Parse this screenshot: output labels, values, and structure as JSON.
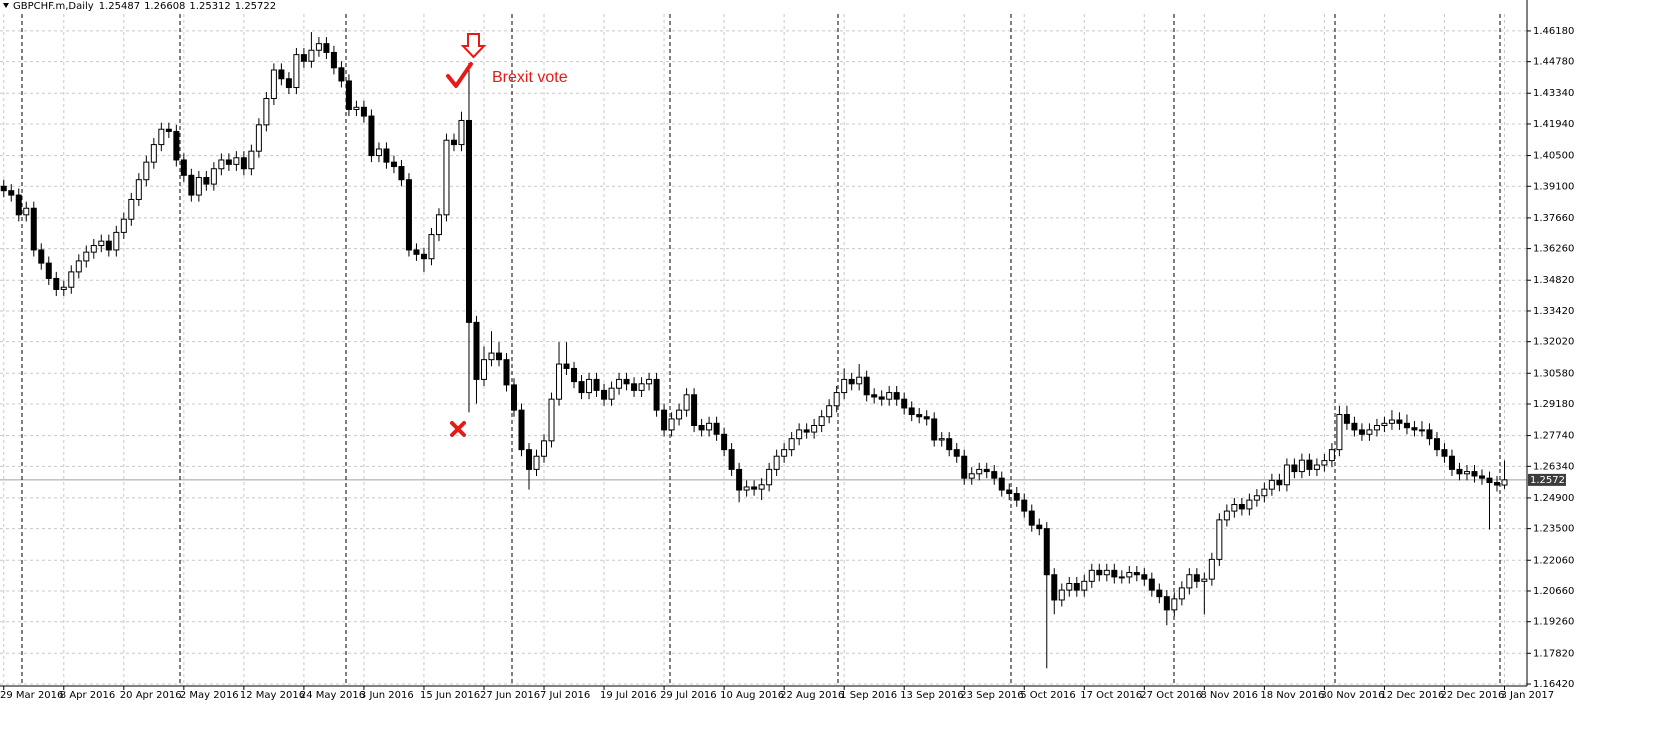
{
  "chart_data": {
    "type": "candlestick",
    "title": "GBPCHF.m,Daily",
    "annotation": "Brexit vote",
    "up_color": "#ffffff",
    "down_color": "#000000",
    "grid": true,
    "xlim": [
      -0.5,
      203
    ],
    "ylim": [
      1.1633,
      1.4686
    ],
    "xticks": [
      {
        "value": 0,
        "label": "29 Mar 2016"
      },
      {
        "value": 8,
        "label": "8 Apr 2016"
      },
      {
        "value": 16,
        "label": "20 Apr 2016"
      },
      {
        "value": 24,
        "label": "2 May 2016"
      },
      {
        "value": 32,
        "label": "12 May 2016"
      },
      {
        "value": 40,
        "label": "24 May 2016"
      },
      {
        "value": 48,
        "label": "3 Jun 2016"
      },
      {
        "value": 56,
        "label": "15 Jun 2016"
      },
      {
        "value": 64,
        "label": "27 Jun 2016"
      },
      {
        "value": 72,
        "label": "7 Jul 2016"
      },
      {
        "value": 80,
        "label": "19 Jul 2016"
      },
      {
        "value": 88,
        "label": "29 Jul 2016"
      },
      {
        "value": 96,
        "label": "10 Aug 2016"
      },
      {
        "value": 104,
        "label": "22 Aug 2016"
      },
      {
        "value": 112,
        "label": "1 Sep 2016"
      },
      {
        "value": 120,
        "label": "13 Sep 2016"
      },
      {
        "value": 128,
        "label": "23 Sep 2016"
      },
      {
        "value": 136,
        "label": "5 Oct 2016"
      },
      {
        "value": 144,
        "label": "17 Oct 2016"
      },
      {
        "value": 152,
        "label": "27 Oct 2016"
      },
      {
        "value": 160,
        "label": "8 Nov 2016"
      },
      {
        "value": 168,
        "label": "18 Nov 2016"
      },
      {
        "value": 176,
        "label": "30 Nov 2016"
      },
      {
        "value": 184,
        "label": "12 Dec 2016"
      },
      {
        "value": 192,
        "label": "22 Dec 2016"
      },
      {
        "value": 200,
        "label": "3 Jan 2017"
      }
    ],
    "yticks": [
      {
        "value": 1.4618,
        "label": "1.46180"
      },
      {
        "value": 1.4478,
        "label": "1.44780"
      },
      {
        "value": 1.4334,
        "label": "1.43340"
      },
      {
        "value": 1.4194,
        "label": "1.41940"
      },
      {
        "value": 1.405,
        "label": "1.40500"
      },
      {
        "value": 1.391,
        "label": "1.39100"
      },
      {
        "value": 1.3766,
        "label": "1.37660"
      },
      {
        "value": 1.3626,
        "label": "1.36260"
      },
      {
        "value": 1.3482,
        "label": "1.34820"
      },
      {
        "value": 1.3342,
        "label": "1.33420"
      },
      {
        "value": 1.3202,
        "label": "1.32020"
      },
      {
        "value": 1.3058,
        "label": "1.30580"
      },
      {
        "value": 1.2918,
        "label": "1.29180"
      },
      {
        "value": 1.2774,
        "label": "1.27740"
      },
      {
        "value": 1.2634,
        "label": "1.26340"
      },
      {
        "value": 1.249,
        "label": "1.24900"
      },
      {
        "value": 1.235,
        "label": "1.23500"
      },
      {
        "value": 1.2206,
        "label": "1.22060"
      },
      {
        "value": 1.2066,
        "label": "1.20660"
      },
      {
        "value": 1.1926,
        "label": "1.19260"
      },
      {
        "value": 1.1782,
        "label": "1.17820"
      },
      {
        "value": 1.1642,
        "label": "1.16420"
      }
    ],
    "open": [
      1.391,
      1.389,
      1.387,
      1.378,
      1.381,
      1.362,
      1.356,
      1.349,
      1.344,
      1.345,
      1.352,
      1.357,
      1.361,
      1.364,
      1.366,
      1.362,
      1.37,
      1.376,
      1.385,
      1.394,
      1.402,
      1.41,
      1.417,
      1.416,
      1.403,
      1.396,
      1.387,
      1.395,
      1.392,
      1.399,
      1.403,
      1.401,
      1.404,
      1.399,
      1.407,
      1.419,
      1.431,
      1.444,
      1.44,
      1.436,
      1.451,
      1.448,
      1.453,
      1.456,
      1.452,
      1.445,
      1.439,
      1.426,
      1.427,
      1.423,
      1.405,
      1.408,
      1.402,
      1.4,
      1.394,
      1.362,
      1.36,
      1.358,
      1.369,
      1.378,
      1.412,
      1.41,
      1.421,
      1.329,
      1.303,
      1.312,
      1.315,
      1.312,
      1.3005,
      1.289,
      1.271,
      1.262,
      1.268,
      1.275,
      1.294,
      1.31,
      1.308,
      1.302,
      1.297,
      1.303,
      1.298,
      1.294,
      1.299,
      1.303,
      1.301,
      1.298,
      1.301,
      1.303,
      1.289,
      1.28,
      1.285,
      1.289,
      1.296,
      1.282,
      1.28,
      1.283,
      1.278,
      1.271,
      1.262,
      1.2526,
      1.254,
      1.253,
      1.255,
      1.262,
      1.268,
      1.271,
      1.276,
      1.28,
      1.279,
      1.282,
      1.286,
      1.291,
      1.297,
      1.303,
      1.301,
      1.304,
      1.296,
      1.295,
      1.294,
      1.297,
      1.294,
      1.29,
      1.287,
      1.286,
      1.285,
      1.2754,
      1.276,
      1.271,
      1.268,
      1.258,
      1.26,
      1.262,
      1.261,
      1.258,
      1.2526,
      1.251,
      1.248,
      1.243,
      1.2366,
      1.235,
      1.214,
      1.2025,
      1.207,
      1.21,
      1.207,
      1.211,
      1.216,
      1.214,
      1.216,
      1.213,
      1.213,
      1.215,
      1.214,
      1.212,
      1.207,
      1.204,
      1.198,
      1.203,
      1.208,
      1.214,
      1.211,
      1.212,
      1.221,
      1.239,
      1.243,
      1.246,
      1.244,
      1.248,
      1.25,
      1.253,
      1.257,
      1.255,
      1.264,
      1.261,
      1.2662,
      1.262,
      1.264,
      1.266,
      1.271,
      1.287,
      1.283,
      1.28,
      1.278,
      1.28,
      1.282,
      1.283,
      1.2845,
      1.283,
      1.281,
      1.28,
      1.28,
      1.276,
      1.271,
      1.268,
      1.262,
      1.26,
      1.261,
      1.259,
      1.258,
      1.256,
      1.25487
    ],
    "high": [
      1.394,
      1.392,
      1.39,
      1.384,
      1.384,
      1.365,
      1.359,
      1.352,
      1.348,
      1.355,
      1.36,
      1.364,
      1.367,
      1.369,
      1.369,
      1.373,
      1.379,
      1.388,
      1.397,
      1.405,
      1.413,
      1.42,
      1.42,
      1.419,
      1.406,
      1.399,
      1.398,
      1.398,
      1.402,
      1.406,
      1.406,
      1.407,
      1.407,
      1.41,
      1.422,
      1.434,
      1.447,
      1.447,
      1.443,
      1.454,
      1.454,
      1.4613,
      1.459,
      1.459,
      1.455,
      1.448,
      1.442,
      1.43,
      1.43,
      1.426,
      1.411,
      1.411,
      1.405,
      1.403,
      1.397,
      1.365,
      1.363,
      1.372,
      1.381,
      1.415,
      1.415,
      1.425,
      1.4472,
      1.332,
      1.318,
      1.325,
      1.32,
      1.315,
      1.3035,
      1.292,
      1.274,
      1.271,
      1.278,
      1.297,
      1.32,
      1.32,
      1.311,
      1.305,
      1.306,
      1.306,
      1.301,
      1.302,
      1.306,
      1.306,
      1.304,
      1.304,
      1.306,
      1.306,
      1.292,
      1.288,
      1.292,
      1.299,
      1.299,
      1.285,
      1.286,
      1.286,
      1.281,
      1.274,
      1.265,
      1.257,
      1.257,
      1.258,
      1.265,
      1.271,
      1.274,
      1.279,
      1.283,
      1.283,
      1.285,
      1.289,
      1.294,
      1.3,
      1.308,
      1.306,
      1.31,
      1.307,
      1.299,
      1.298,
      1.3,
      1.3,
      1.297,
      1.293,
      1.29,
      1.289,
      1.288,
      1.279,
      1.279,
      1.274,
      1.271,
      1.263,
      1.265,
      1.265,
      1.264,
      1.261,
      1.2556,
      1.254,
      1.251,
      1.246,
      1.2396,
      1.238,
      1.217,
      1.21,
      1.213,
      1.213,
      1.214,
      1.219,
      1.219,
      1.219,
      1.219,
      1.216,
      1.218,
      1.218,
      1.217,
      1.215,
      1.21,
      1.207,
      1.206,
      1.211,
      1.217,
      1.217,
      1.215,
      1.224,
      1.242,
      1.246,
      1.249,
      1.249,
      1.251,
      1.253,
      1.256,
      1.26,
      1.26,
      1.267,
      1.267,
      1.2692,
      1.2692,
      1.267,
      1.269,
      1.274,
      1.291,
      1.291,
      1.286,
      1.283,
      1.283,
      1.285,
      1.286,
      1.289,
      1.288,
      1.287,
      1.284,
      1.284,
      1.283,
      1.279,
      1.274,
      1.271,
      1.265,
      1.264,
      1.264,
      1.262,
      1.261,
      1.259,
      1.26608
    ],
    "low": [
      1.386,
      1.384,
      1.375,
      1.375,
      1.359,
      1.353,
      1.346,
      1.341,
      1.341,
      1.342,
      1.349,
      1.354,
      1.358,
      1.361,
      1.359,
      1.359,
      1.367,
      1.373,
      1.382,
      1.391,
      1.399,
      1.407,
      1.413,
      1.4,
      1.393,
      1.384,
      1.384,
      1.389,
      1.389,
      1.396,
      1.398,
      1.398,
      1.396,
      1.396,
      1.404,
      1.416,
      1.428,
      1.437,
      1.433,
      1.433,
      1.445,
      1.445,
      1.45,
      1.449,
      1.442,
      1.436,
      1.423,
      1.423,
      1.42,
      1.402,
      1.402,
      1.399,
      1.397,
      1.391,
      1.359,
      1.357,
      1.352,
      1.355,
      1.366,
      1.375,
      1.407,
      1.407,
      1.288,
      1.292,
      1.3,
      1.309,
      1.309,
      1.2975,
      1.286,
      1.268,
      1.2528,
      1.259,
      1.265,
      1.272,
      1.291,
      1.305,
      1.299,
      1.294,
      1.294,
      1.295,
      1.291,
      1.291,
      1.296,
      1.298,
      1.295,
      1.295,
      1.298,
      1.286,
      1.277,
      1.277,
      1.282,
      1.286,
      1.279,
      1.277,
      1.277,
      1.275,
      1.268,
      1.259,
      1.247,
      1.2496,
      1.25,
      1.248,
      1.252,
      1.259,
      1.265,
      1.268,
      1.273,
      1.276,
      1.276,
      1.279,
      1.283,
      1.288,
      1.294,
      1.298,
      1.298,
      1.293,
      1.292,
      1.291,
      1.291,
      1.291,
      1.287,
      1.284,
      1.283,
      1.282,
      1.2724,
      1.2724,
      1.268,
      1.265,
      1.255,
      1.255,
      1.257,
      1.258,
      1.255,
      1.2496,
      1.248,
      1.245,
      1.24,
      1.2336,
      1.232,
      1.1714,
      1.196,
      1.1995,
      1.204,
      1.204,
      1.204,
      1.208,
      1.211,
      1.211,
      1.21,
      1.21,
      1.21,
      1.211,
      1.209,
      1.204,
      1.201,
      1.191,
      1.195,
      1.2,
      1.205,
      1.208,
      1.196,
      1.209,
      1.218,
      1.236,
      1.24,
      1.241,
      1.241,
      1.245,
      1.247,
      1.25,
      1.252,
      1.252,
      1.258,
      1.258,
      1.259,
      1.259,
      1.261,
      1.263,
      1.268,
      1.28,
      1.277,
      1.275,
      1.275,
      1.277,
      1.279,
      1.28,
      1.28,
      1.278,
      1.277,
      1.277,
      1.273,
      1.268,
      1.265,
      1.259,
      1.257,
      1.257,
      1.256,
      1.255,
      1.2346,
      1.2519,
      1.25312
    ],
    "close": [
      1.389,
      1.387,
      1.378,
      1.381,
      1.362,
      1.356,
      1.349,
      1.344,
      1.345,
      1.352,
      1.357,
      1.361,
      1.364,
      1.366,
      1.362,
      1.37,
      1.376,
      1.385,
      1.394,
      1.402,
      1.41,
      1.417,
      1.416,
      1.403,
      1.396,
      1.387,
      1.395,
      1.392,
      1.399,
      1.403,
      1.401,
      1.404,
      1.399,
      1.407,
      1.419,
      1.431,
      1.444,
      1.44,
      1.436,
      1.451,
      1.448,
      1.453,
      1.456,
      1.452,
      1.445,
      1.439,
      1.426,
      1.427,
      1.423,
      1.405,
      1.408,
      1.402,
      1.4,
      1.394,
      1.362,
      1.36,
      1.358,
      1.369,
      1.378,
      1.412,
      1.41,
      1.421,
      1.329,
      1.303,
      1.312,
      1.315,
      1.312,
      1.3005,
      1.289,
      1.271,
      1.262,
      1.268,
      1.275,
      1.294,
      1.31,
      1.308,
      1.302,
      1.297,
      1.303,
      1.298,
      1.294,
      1.299,
      1.303,
      1.301,
      1.298,
      1.301,
      1.303,
      1.289,
      1.28,
      1.285,
      1.289,
      1.296,
      1.282,
      1.28,
      1.283,
      1.278,
      1.271,
      1.262,
      1.2526,
      1.254,
      1.253,
      1.255,
      1.262,
      1.268,
      1.271,
      1.276,
      1.28,
      1.279,
      1.282,
      1.286,
      1.291,
      1.297,
      1.303,
      1.301,
      1.304,
      1.296,
      1.295,
      1.294,
      1.297,
      1.294,
      1.29,
      1.287,
      1.286,
      1.285,
      1.2754,
      1.276,
      1.271,
      1.268,
      1.258,
      1.26,
      1.262,
      1.261,
      1.258,
      1.2526,
      1.251,
      1.248,
      1.243,
      1.2366,
      1.235,
      1.214,
      1.2025,
      1.207,
      1.21,
      1.207,
      1.211,
      1.216,
      1.214,
      1.216,
      1.213,
      1.213,
      1.215,
      1.214,
      1.212,
      1.207,
      1.204,
      1.198,
      1.203,
      1.208,
      1.214,
      1.211,
      1.212,
      1.221,
      1.239,
      1.243,
      1.246,
      1.244,
      1.248,
      1.25,
      1.253,
      1.257,
      1.255,
      1.264,
      1.261,
      1.2662,
      1.262,
      1.264,
      1.266,
      1.271,
      1.287,
      1.283,
      1.28,
      1.278,
      1.28,
      1.282,
      1.283,
      1.2845,
      1.283,
      1.281,
      1.28,
      1.28,
      1.276,
      1.271,
      1.268,
      1.262,
      1.26,
      1.261,
      1.259,
      1.258,
      1.256,
      1.25487,
      1.25722
    ]
  }
}
